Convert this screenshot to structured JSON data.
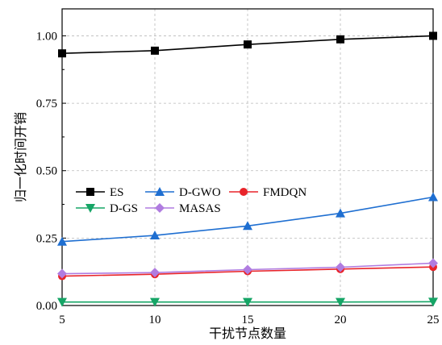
{
  "chart_data": {
    "type": "line",
    "title": "",
    "xlabel": "干扰节点数量",
    "ylabel": "归一化时间开销",
    "x": [
      5,
      10,
      15,
      20,
      25
    ],
    "xlim": [
      5,
      25
    ],
    "ylim": [
      0,
      1.1
    ],
    "x_ticks": [
      "5",
      "10",
      "15",
      "20",
      "25"
    ],
    "y_ticks": [
      "0.00",
      "0.25",
      "0.50",
      "0.75",
      "1.00"
    ],
    "y_tick_values": [
      0,
      0.25,
      0.5,
      0.75,
      1.0
    ],
    "grid": true,
    "legend_position": "center-left",
    "series": [
      {
        "name": "ES",
        "values": [
          0.935,
          0.945,
          0.968,
          0.987,
          1.0
        ],
        "color": "#000000",
        "marker": "square"
      },
      {
        "name": "D-GWO",
        "values": [
          0.237,
          0.26,
          0.295,
          0.342,
          0.402
        ],
        "color": "#1f6fd1",
        "marker": "triangle-up"
      },
      {
        "name": "FMDQN",
        "values": [
          0.109,
          0.116,
          0.127,
          0.135,
          0.143
        ],
        "color": "#e8242a",
        "marker": "circle"
      },
      {
        "name": "D-GS",
        "values": [
          0.013,
          0.013,
          0.013,
          0.013,
          0.014
        ],
        "color": "#16a566",
        "marker": "triangle-down"
      },
      {
        "name": "MASAS",
        "values": [
          0.118,
          0.122,
          0.133,
          0.142,
          0.157
        ],
        "color": "#b07ce0",
        "marker": "diamond"
      }
    ]
  }
}
